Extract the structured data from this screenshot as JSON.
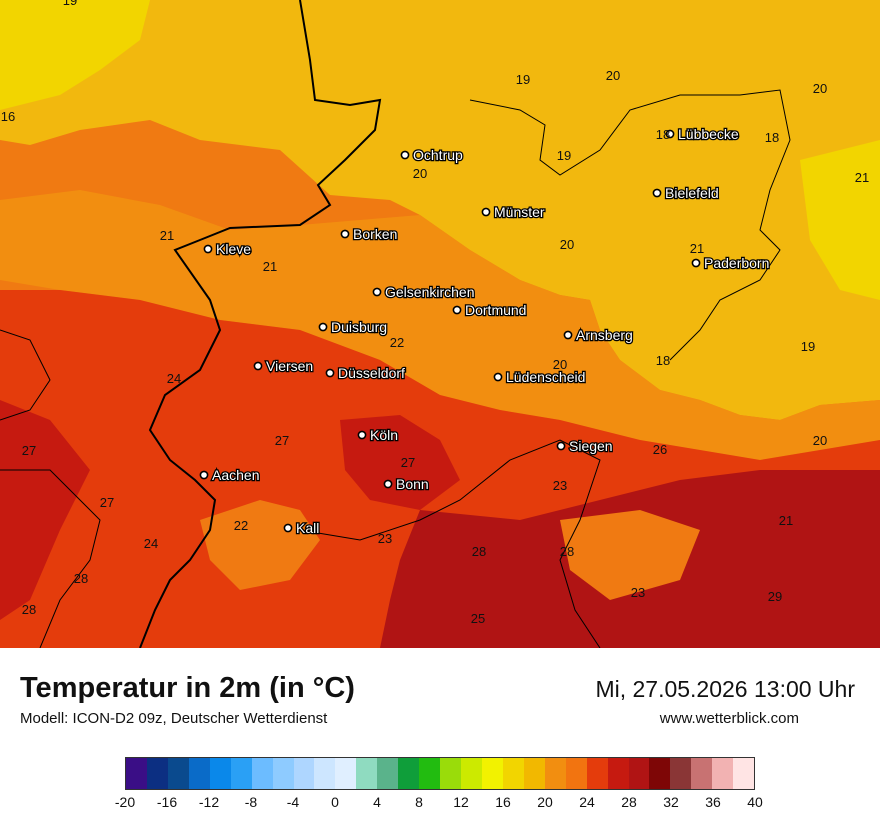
{
  "title": "Temperatur in 2m (in °C)",
  "subtitle": "Modell: ICON-D2 09z, Deutscher Wetterdienst",
  "datetime": "Mi, 27.05.2026 13:00 Uhr",
  "website": "www.wetterblick.com",
  "cities": [
    {
      "name": "Ochtrup"
    },
    {
      "name": "Lübbecke"
    },
    {
      "name": "Bielefeld"
    },
    {
      "name": "Münster"
    },
    {
      "name": "Borken"
    },
    {
      "name": "Kleve"
    },
    {
      "name": "Paderborn"
    },
    {
      "name": "Gelsenkirchen"
    },
    {
      "name": "Dortmund"
    },
    {
      "name": "Duisburg"
    },
    {
      "name": "Arnsberg"
    },
    {
      "name": "Viersen"
    },
    {
      "name": "Düsseldorf"
    },
    {
      "name": "Lüdenscheid"
    },
    {
      "name": "Köln"
    },
    {
      "name": "Siegen"
    },
    {
      "name": "Aachen"
    },
    {
      "name": "Bonn"
    },
    {
      "name": "Kall"
    }
  ],
  "values": [
    "19",
    "16",
    "19",
    "20",
    "20",
    "18",
    "18",
    "19",
    "20",
    "21",
    "21",
    "21",
    "20",
    "21",
    "22",
    "24",
    "20",
    "18",
    "19",
    "27",
    "27",
    "27",
    "20",
    "26",
    "23",
    "27",
    "24",
    "22",
    "23",
    "28",
    "28",
    "21",
    "28",
    "28",
    "23",
    "29",
    "25"
  ],
  "legend": {
    "colors": [
      "#3a0e86",
      "#0c2f82",
      "#0a4a8e",
      "#0a6bc8",
      "#0a88ea",
      "#2aa0f5",
      "#6cbcff",
      "#8ecbff",
      "#aed6ff",
      "#cde6ff",
      "#e0efff",
      "#8fdbc0",
      "#5ab38b",
      "#0f9e3a",
      "#22bc10",
      "#9adc0a",
      "#ccea00",
      "#f2f200",
      "#f2d500",
      "#f2b800",
      "#f28e10",
      "#f27410",
      "#e43c0c",
      "#c61a10",
      "#b01414",
      "#7e0606",
      "#8a3636",
      "#c87272",
      "#f2b2b2",
      "#ffe4e4"
    ],
    "ticks": [
      "-20",
      "-16",
      "-12",
      "-8",
      "-4",
      "0",
      "4",
      "8",
      "12",
      "16",
      "20",
      "24",
      "28",
      "32",
      "36",
      "40"
    ]
  }
}
